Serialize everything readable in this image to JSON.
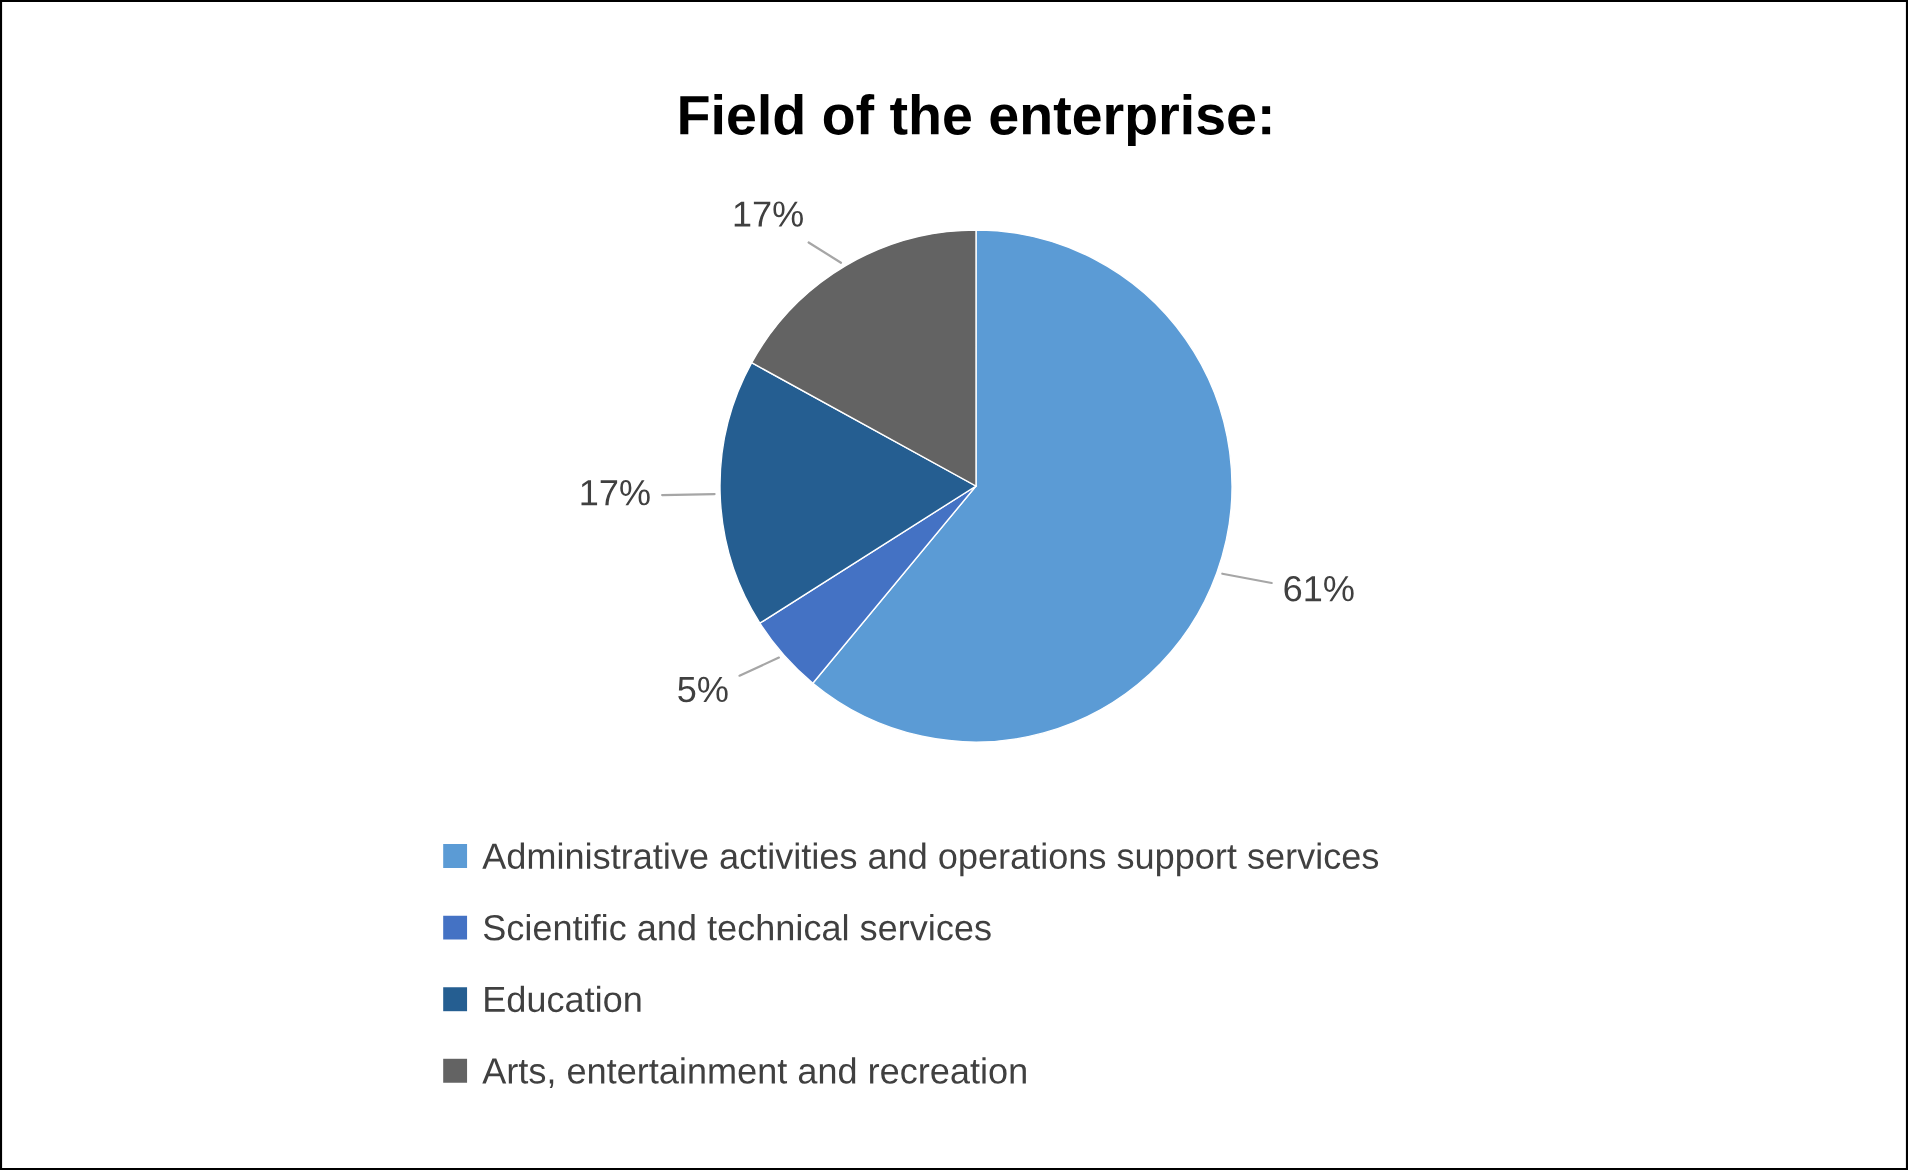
{
  "chart_data": {
    "type": "pie",
    "title": "Field of the enterprise:",
    "categories": [
      "Administrative activities and operations support services",
      "Scientific and technical services",
      "Education",
      "Arts, entertainment and recreation"
    ],
    "values": [
      61,
      5,
      17,
      17
    ],
    "colors": [
      "#5b9bd5",
      "#4472c4",
      "#255e91",
      "#636363"
    ],
    "value_labels": [
      "61%",
      "5%",
      "17%",
      "17%"
    ],
    "legend": "bottom"
  }
}
